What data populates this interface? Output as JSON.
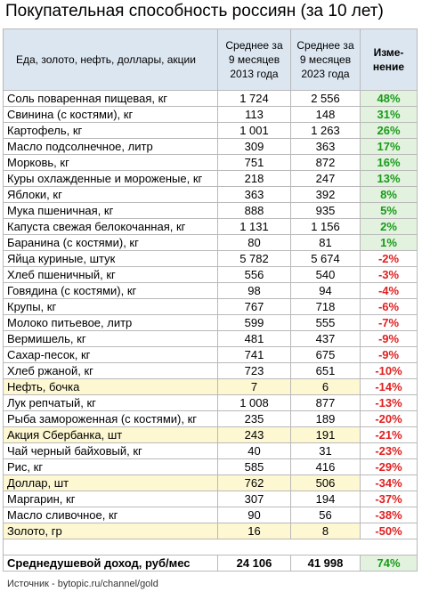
{
  "title": "Покупательная способность россиян (за 10 лет)",
  "header": {
    "item": "Еда, золото, нефть, доллары, акции",
    "col2013": "Среднее за 9 месяцев 2013 года",
    "col2023": "Среднее за 9 месяцев 2023 года",
    "change": "Изме-нение"
  },
  "rows": [
    {
      "name": "Соль поваренная пищевая, кг",
      "v2013": "1 724",
      "v2023": "2 556",
      "change": "48%",
      "dir": "pos"
    },
    {
      "name": "Свинина (с костями), кг",
      "v2013": "113",
      "v2023": "148",
      "change": "31%",
      "dir": "pos"
    },
    {
      "name": "Картофель, кг",
      "v2013": "1 001",
      "v2023": "1 263",
      "change": "26%",
      "dir": "pos"
    },
    {
      "name": "Масло подсолнечное, литр",
      "v2013": "309",
      "v2023": "363",
      "change": "17%",
      "dir": "pos"
    },
    {
      "name": "Морковь, кг",
      "v2013": "751",
      "v2023": "872",
      "change": "16%",
      "dir": "pos"
    },
    {
      "name": "Куры охлажденные и мороженые, кг",
      "v2013": "218",
      "v2023": "247",
      "change": "13%",
      "dir": "pos"
    },
    {
      "name": "Яблоки, кг",
      "v2013": "363",
      "v2023": "392",
      "change": "8%",
      "dir": "pos"
    },
    {
      "name": "Мука пшеничная, кг",
      "v2013": "888",
      "v2023": "935",
      "change": "5%",
      "dir": "pos"
    },
    {
      "name": "Капуста свежая белокочанная, кг",
      "v2013": "1 131",
      "v2023": "1 156",
      "change": "2%",
      "dir": "pos"
    },
    {
      "name": "Баранина (с костями), кг",
      "v2013": "80",
      "v2023": "81",
      "change": "1%",
      "dir": "pos"
    },
    {
      "name": "Яйца куриные, штук",
      "v2013": "5 782",
      "v2023": "5 674",
      "change": "-2%",
      "dir": "neg"
    },
    {
      "name": "Хлеб пшеничный, кг",
      "v2013": "556",
      "v2023": "540",
      "change": "-3%",
      "dir": "neg"
    },
    {
      "name": "Говядина (с костями), кг",
      "v2013": "98",
      "v2023": "94",
      "change": "-4%",
      "dir": "neg"
    },
    {
      "name": "Крупы, кг",
      "v2013": "767",
      "v2023": "718",
      "change": "-6%",
      "dir": "neg"
    },
    {
      "name": "Молоко питьевое, литр",
      "v2013": "599",
      "v2023": "555",
      "change": "-7%",
      "dir": "neg"
    },
    {
      "name": "Вермишель, кг",
      "v2013": "481",
      "v2023": "437",
      "change": "-9%",
      "dir": "neg"
    },
    {
      "name": "Сахар-песок, кг",
      "v2013": "741",
      "v2023": "675",
      "change": "-9%",
      "dir": "neg"
    },
    {
      "name": "Хлеб ржаной, кг",
      "v2013": "723",
      "v2023": "651",
      "change": "-10%",
      "dir": "neg"
    },
    {
      "name": "Нефть, бочка",
      "v2013": "7",
      "v2023": "6",
      "change": "-14%",
      "dir": "neg",
      "highlight": true
    },
    {
      "name": "Лук репчатый, кг",
      "v2013": "1 008",
      "v2023": "877",
      "change": "-13%",
      "dir": "neg"
    },
    {
      "name": "Рыба замороженная (с костями), кг",
      "v2013": "235",
      "v2023": "189",
      "change": "-20%",
      "dir": "neg"
    },
    {
      "name": "Акция Сбербанка, шт",
      "v2013": "243",
      "v2023": "191",
      "change": "-21%",
      "dir": "neg",
      "highlight": true
    },
    {
      "name": "Чай черный байховый, кг",
      "v2013": "40",
      "v2023": "31",
      "change": "-23%",
      "dir": "neg"
    },
    {
      "name": "Рис, кг",
      "v2013": "585",
      "v2023": "416",
      "change": "-29%",
      "dir": "neg"
    },
    {
      "name": "Доллар, шт",
      "v2013": "762",
      "v2023": "506",
      "change": "-34%",
      "dir": "neg",
      "highlight": true
    },
    {
      "name": "Маргарин, кг",
      "v2013": "307",
      "v2023": "194",
      "change": "-37%",
      "dir": "neg"
    },
    {
      "name": "Масло сливочное, кг",
      "v2013": "90",
      "v2023": "56",
      "change": "-38%",
      "dir": "neg"
    },
    {
      "name": "Золото, гр",
      "v2013": "16",
      "v2023": "8",
      "change": "-50%",
      "dir": "neg",
      "highlight": true
    }
  ],
  "total": {
    "name": "Среднедушевой доход, руб/мес",
    "v2013": "24 106",
    "v2023": "41 998",
    "change": "74%"
  },
  "source": "Источник - bytopic.ru/channel/gold",
  "colors": {
    "header_bg": "#dce6f1",
    "highlight_bg": "#fdf7d2",
    "positive": "#1a9a1a",
    "positive_bg": "#e2f2df",
    "negative": "#e02020"
  }
}
